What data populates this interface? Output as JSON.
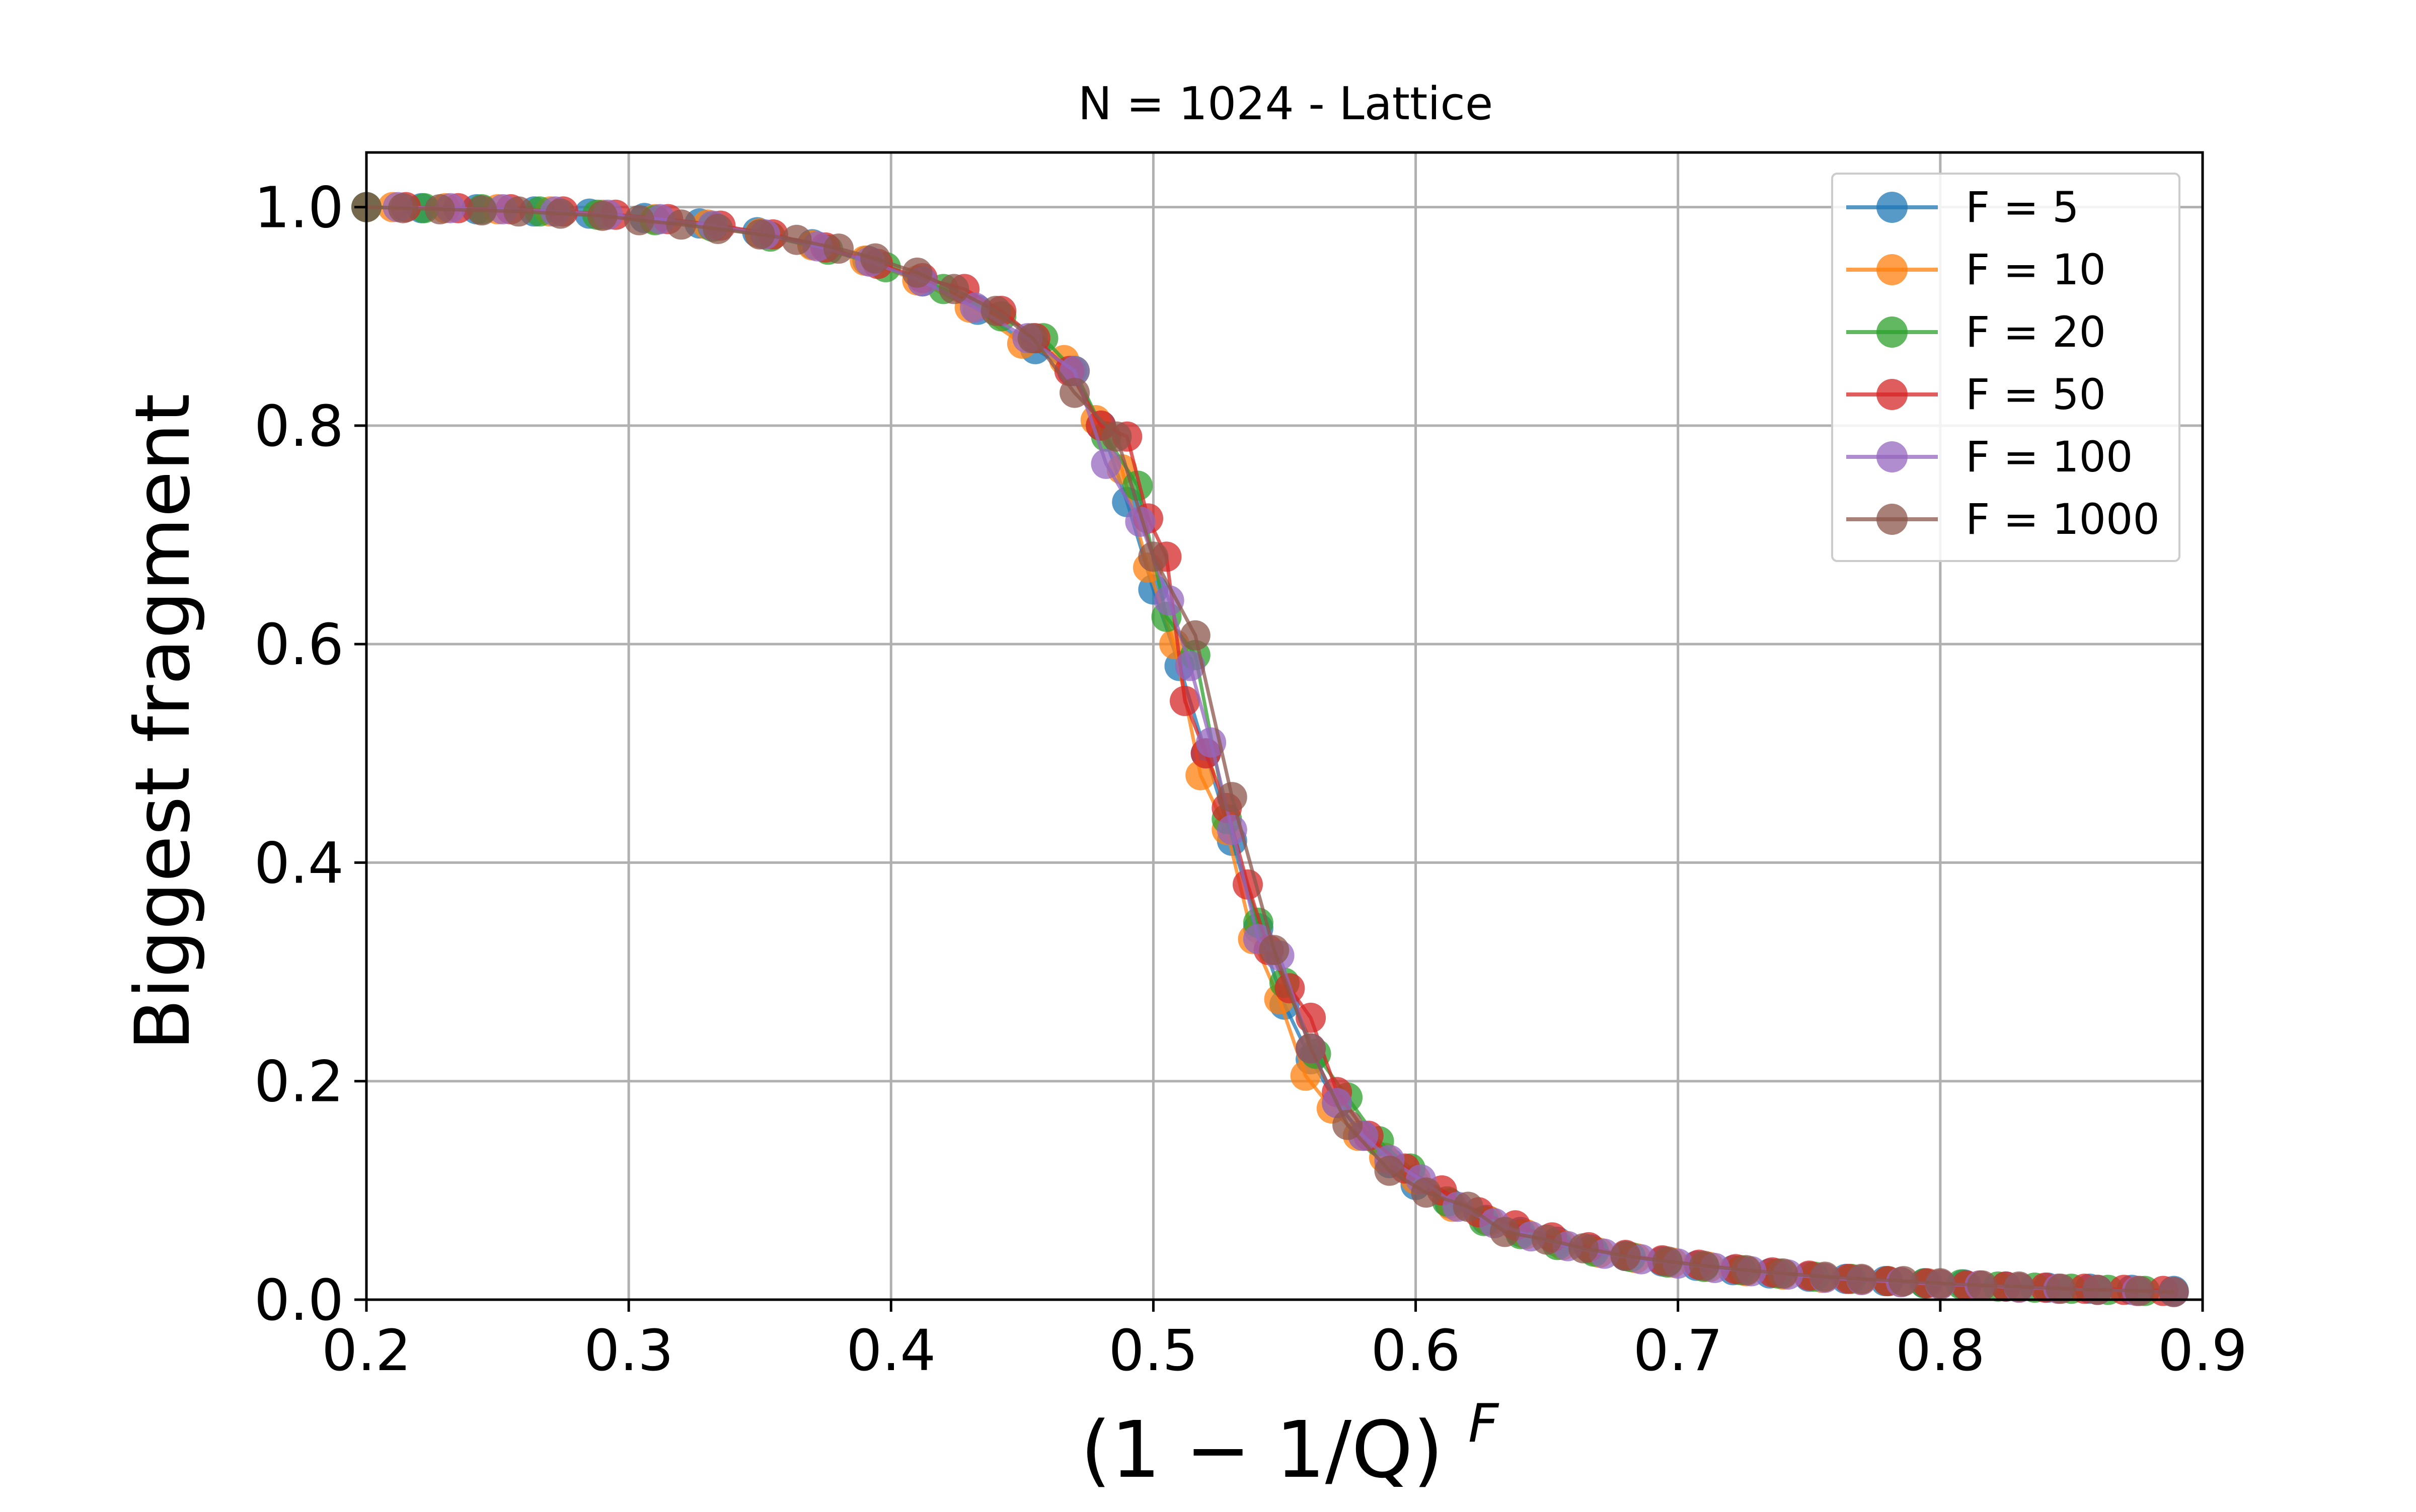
{
  "chart_data": {
    "type": "line",
    "title": "N = 1024 - Lattice",
    "xlabel": "(1 − 1/Q)",
    "xlabel_superscript": "F",
    "ylabel": "Biggest fragment",
    "xlim": [
      0.2,
      0.9
    ],
    "ylim": [
      0.0,
      1.05
    ],
    "xticks": [
      "0.2",
      "0.3",
      "0.4",
      "0.5",
      "0.6",
      "0.7",
      "0.8",
      "0.9"
    ],
    "yticks": [
      "0.0",
      "0.2",
      "0.4",
      "0.6",
      "0.8",
      "1.0"
    ],
    "grid": true,
    "legend_position": "top-right",
    "series": [
      {
        "name": "F = 5",
        "color": "#1f77b4",
        "x": [
          0.2,
          0.221,
          0.242,
          0.264,
          0.285,
          0.306,
          0.327,
          0.349,
          0.37,
          0.391,
          0.412,
          0.433,
          0.455,
          0.469,
          0.48,
          0.49,
          0.5,
          0.51,
          0.52,
          0.53,
          0.54,
          0.55,
          0.56,
          0.57,
          0.58,
          0.59,
          0.6,
          0.613,
          0.627,
          0.64,
          0.654,
          0.667,
          0.68,
          0.694,
          0.707,
          0.721,
          0.735,
          0.75,
          0.764,
          0.779,
          0.794,
          0.809,
          0.825,
          0.841,
          0.857,
          0.873,
          0.889
        ],
        "y": [
          1.0,
          0.999,
          0.998,
          0.996,
          0.994,
          0.99,
          0.985,
          0.977,
          0.966,
          0.951,
          0.932,
          0.906,
          0.87,
          0.85,
          0.8,
          0.73,
          0.65,
          0.58,
          0.5,
          0.42,
          0.34,
          0.27,
          0.22,
          0.18,
          0.15,
          0.125,
          0.105,
          0.088,
          0.073,
          0.062,
          0.053,
          0.046,
          0.04,
          0.035,
          0.031,
          0.027,
          0.024,
          0.021,
          0.019,
          0.017,
          0.015,
          0.014,
          0.012,
          0.011,
          0.01,
          0.009,
          0.008
        ]
      },
      {
        "name": "F = 10",
        "color": "#ff7f0e",
        "x": [
          0.21,
          0.23,
          0.25,
          0.27,
          0.29,
          0.31,
          0.33,
          0.35,
          0.37,
          0.39,
          0.41,
          0.43,
          0.45,
          0.466,
          0.478,
          0.488,
          0.498,
          0.508,
          0.518,
          0.528,
          0.538,
          0.548,
          0.558,
          0.568,
          0.578,
          0.588,
          0.6,
          0.614,
          0.628,
          0.642,
          0.656,
          0.67,
          0.684,
          0.698,
          0.712,
          0.726,
          0.74,
          0.755,
          0.77,
          0.785,
          0.8,
          0.815,
          0.83,
          0.845,
          0.86,
          0.875
        ],
        "y": [
          1.0,
          0.999,
          0.998,
          0.996,
          0.993,
          0.989,
          0.984,
          0.976,
          0.965,
          0.951,
          0.933,
          0.908,
          0.875,
          0.86,
          0.805,
          0.76,
          0.67,
          0.6,
          0.48,
          0.43,
          0.33,
          0.275,
          0.205,
          0.175,
          0.15,
          0.13,
          0.11,
          0.085,
          0.072,
          0.06,
          0.05,
          0.043,
          0.038,
          0.034,
          0.03,
          0.026,
          0.023,
          0.02,
          0.018,
          0.016,
          0.014,
          0.013,
          0.011,
          0.01,
          0.009,
          0.008
        ]
      },
      {
        "name": "F = 20",
        "color": "#2ca02c",
        "x": [
          0.2,
          0.222,
          0.244,
          0.266,
          0.288,
          0.31,
          0.332,
          0.354,
          0.376,
          0.398,
          0.42,
          0.442,
          0.458,
          0.47,
          0.482,
          0.494,
          0.505,
          0.516,
          0.528,
          0.54,
          0.55,
          0.562,
          0.574,
          0.586,
          0.598,
          0.612,
          0.626,
          0.64,
          0.654,
          0.668,
          0.682,
          0.696,
          0.71,
          0.724,
          0.738,
          0.752,
          0.766,
          0.78,
          0.794,
          0.808,
          0.822,
          0.836,
          0.85,
          0.864,
          0.878
        ],
        "y": [
          1.0,
          0.999,
          0.998,
          0.996,
          0.993,
          0.988,
          0.982,
          0.973,
          0.961,
          0.945,
          0.925,
          0.9,
          0.88,
          0.85,
          0.79,
          0.745,
          0.625,
          0.59,
          0.44,
          0.345,
          0.29,
          0.225,
          0.185,
          0.145,
          0.12,
          0.09,
          0.072,
          0.06,
          0.05,
          0.044,
          0.039,
          0.034,
          0.03,
          0.027,
          0.024,
          0.021,
          0.019,
          0.017,
          0.015,
          0.014,
          0.012,
          0.011,
          0.01,
          0.009,
          0.008
        ]
      },
      {
        "name": "F = 50",
        "color": "#d62728",
        "x": [
          0.215,
          0.235,
          0.255,
          0.275,
          0.295,
          0.315,
          0.335,
          0.355,
          0.375,
          0.395,
          0.412,
          0.428,
          0.442,
          0.455,
          0.468,
          0.48,
          0.49,
          0.498,
          0.505,
          0.512,
          0.52,
          0.528,
          0.536,
          0.544,
          0.552,
          0.56,
          0.57,
          0.582,
          0.596,
          0.61,
          0.624,
          0.638,
          0.652,
          0.666,
          0.68,
          0.694,
          0.708,
          0.722,
          0.736,
          0.75,
          0.765,
          0.78,
          0.795,
          0.81,
          0.825,
          0.84,
          0.855,
          0.87,
          0.885
        ],
        "y": [
          1.0,
          0.999,
          0.998,
          0.996,
          0.993,
          0.989,
          0.983,
          0.975,
          0.963,
          0.948,
          0.935,
          0.925,
          0.905,
          0.88,
          0.85,
          0.8,
          0.79,
          0.715,
          0.68,
          0.548,
          0.5,
          0.45,
          0.38,
          0.32,
          0.285,
          0.258,
          0.19,
          0.15,
          0.12,
          0.1,
          0.08,
          0.068,
          0.057,
          0.048,
          0.041,
          0.036,
          0.032,
          0.028,
          0.025,
          0.022,
          0.019,
          0.017,
          0.015,
          0.013,
          0.012,
          0.011,
          0.01,
          0.009,
          0.008
        ]
      },
      {
        "name": "F = 100",
        "color": "#9467bd",
        "x": [
          0.212,
          0.232,
          0.252,
          0.272,
          0.292,
          0.312,
          0.332,
          0.352,
          0.372,
          0.392,
          0.412,
          0.432,
          0.452,
          0.47,
          0.482,
          0.495,
          0.506,
          0.514,
          0.522,
          0.53,
          0.54,
          0.548,
          0.56,
          0.57,
          0.58,
          0.59,
          0.602,
          0.616,
          0.63,
          0.644,
          0.658,
          0.672,
          0.686,
          0.7,
          0.714,
          0.728,
          0.742,
          0.756,
          0.77,
          0.785,
          0.8,
          0.815,
          0.83,
          0.845,
          0.86,
          0.875,
          0.889
        ],
        "y": [
          1.0,
          0.999,
          0.998,
          0.996,
          0.993,
          0.989,
          0.983,
          0.975,
          0.964,
          0.95,
          0.932,
          0.908,
          0.88,
          0.85,
          0.765,
          0.712,
          0.64,
          0.58,
          0.51,
          0.43,
          0.33,
          0.315,
          0.23,
          0.18,
          0.15,
          0.128,
          0.11,
          0.085,
          0.07,
          0.058,
          0.049,
          0.042,
          0.037,
          0.033,
          0.029,
          0.026,
          0.023,
          0.02,
          0.018,
          0.016,
          0.014,
          0.013,
          0.011,
          0.01,
          0.009,
          0.008,
          0.007
        ]
      },
      {
        "name": "F = 1000",
        "color": "#8c564b",
        "x": [
          0.2,
          0.214,
          0.228,
          0.244,
          0.258,
          0.274,
          0.29,
          0.304,
          0.32,
          0.334,
          0.35,
          0.364,
          0.38,
          0.394,
          0.41,
          0.424,
          0.44,
          0.454,
          0.47,
          0.486,
          0.5,
          0.516,
          0.53,
          0.546,
          0.56,
          0.574,
          0.59,
          0.604,
          0.62,
          0.634,
          0.65,
          0.664,
          0.68,
          0.696,
          0.71,
          0.726,
          0.74,
          0.756,
          0.77,
          0.786,
          0.8,
          0.816,
          0.83,
          0.846,
          0.86,
          0.876,
          0.889
        ],
        "y": [
          1.0,
          0.999,
          0.998,
          0.997,
          0.996,
          0.994,
          0.992,
          0.988,
          0.984,
          0.98,
          0.975,
          0.97,
          0.962,
          0.953,
          0.94,
          0.925,
          0.905,
          0.88,
          0.83,
          0.79,
          0.68,
          0.608,
          0.46,
          0.32,
          0.23,
          0.16,
          0.118,
          0.098,
          0.085,
          0.062,
          0.055,
          0.047,
          0.04,
          0.035,
          0.031,
          0.027,
          0.024,
          0.021,
          0.019,
          0.017,
          0.015,
          0.013,
          0.012,
          0.01,
          0.009,
          0.008,
          0.007
        ]
      }
    ]
  }
}
